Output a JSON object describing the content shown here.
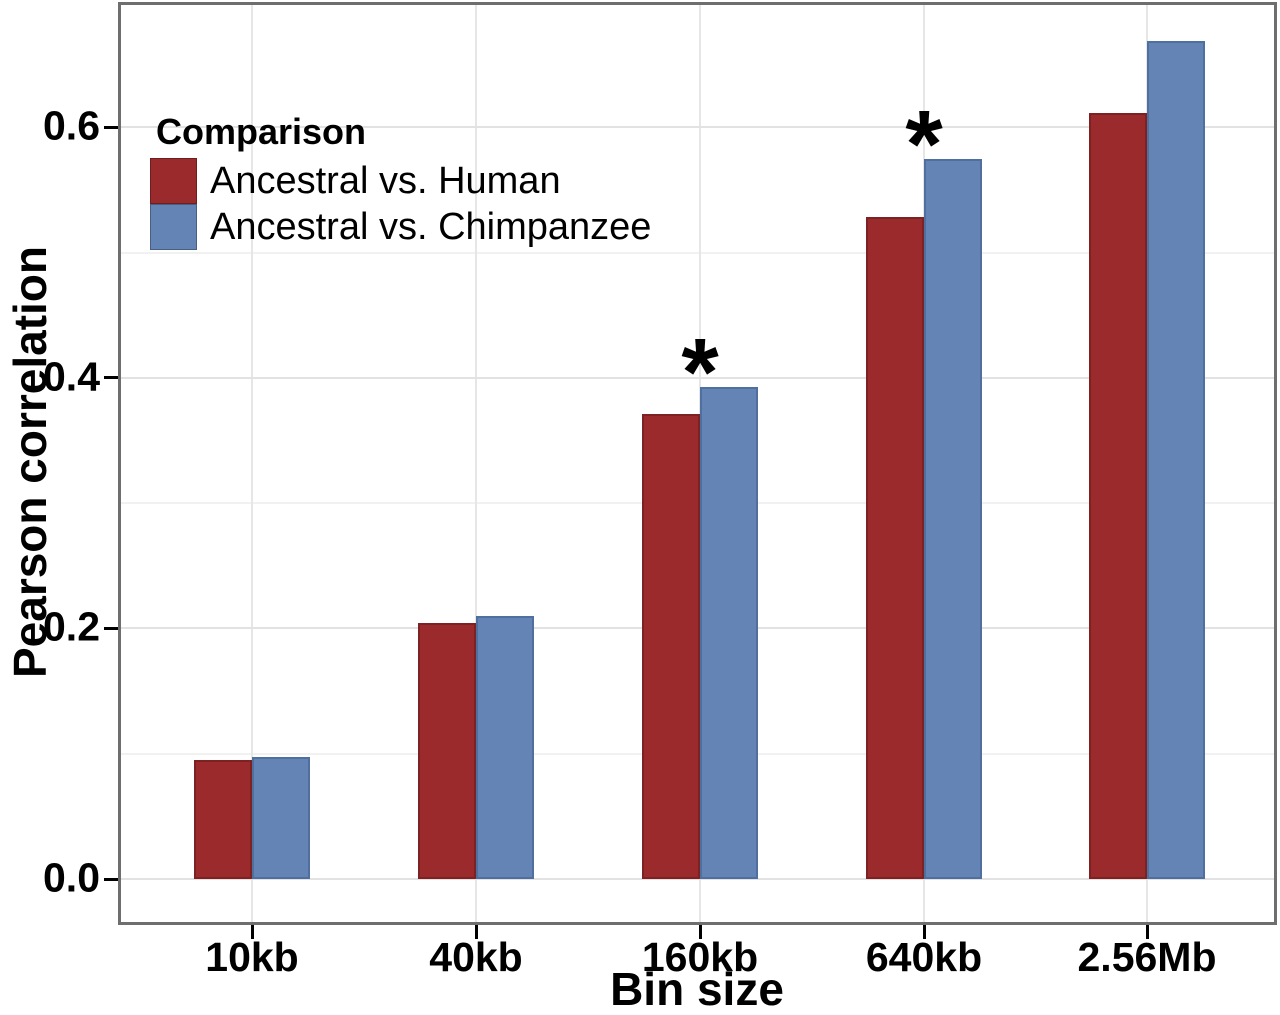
{
  "figure": {
    "background": "#ffffff",
    "panel_border_color": "#6e6e6e",
    "grid_major_color": "#e2e2e2",
    "grid_minor_color": "#f1f1f1",
    "tick_color": "#000000",
    "text_color": "#000000"
  },
  "chart_data": {
    "type": "bar",
    "title": "",
    "xlabel": "Bin size",
    "ylabel": "Pearson correlation",
    "categories": [
      "10kb",
      "40kb",
      "160kb",
      "640kb",
      "2.56Mb"
    ],
    "series": [
      {
        "name": "Ancestral vs. Human",
        "color": "#9a2a2b",
        "border_color": "#7d2122",
        "values": [
          0.095,
          0.204,
          0.371,
          0.528,
          0.611
        ]
      },
      {
        "name": "Ancestral vs. Chimpanzee",
        "color": "#6384b4",
        "border_color": "#4f6f9e",
        "values": [
          0.097,
          0.21,
          0.393,
          0.575,
          0.669
        ]
      }
    ],
    "ylim": [
      0,
      0.7
    ],
    "yticks": [
      0,
      0.2,
      0.4,
      0.6
    ],
    "ytick_labels": [
      "0.0",
      "0.2",
      "0.4",
      "0.6"
    ],
    "minor_yticks": [
      0.1,
      0.3,
      0.5,
      0.7
    ],
    "grid": true,
    "legend": {
      "title": "Comparison",
      "position": "top-left"
    },
    "annotations": [
      {
        "category": "160kb",
        "symbol": "*",
        "y": 0.393
      },
      {
        "category": "640kb",
        "symbol": "*",
        "y": 0.575
      }
    ]
  }
}
